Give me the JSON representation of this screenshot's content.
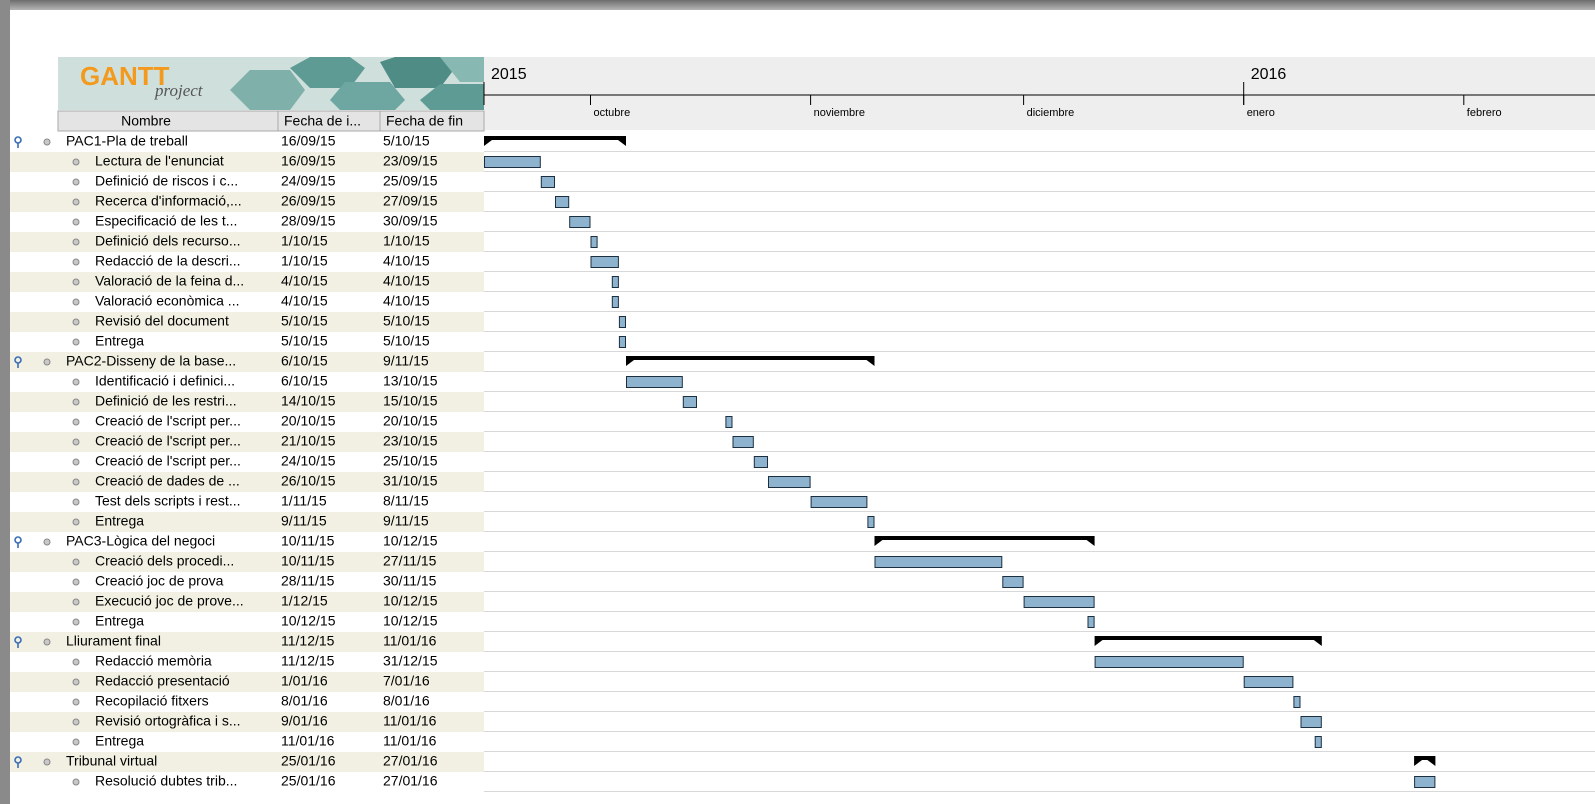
{
  "logo": {
    "brand": "GANTT",
    "sub": "project"
  },
  "columns": [
    "Nombre",
    "Fecha de i...",
    "Fecha de fin"
  ],
  "timeline": {
    "years": [
      "2015",
      "2016"
    ],
    "months": [
      "octubre",
      "noviembre",
      "diciembre",
      "enero",
      "febrero"
    ]
  },
  "rows": [
    {
      "name": "PAC1-Pla de treball",
      "start": "16/09/15",
      "end": "5/10/15",
      "level": 0
    },
    {
      "name": "Lectura de l'enunciat",
      "start": "16/09/15",
      "end": "23/09/15",
      "level": 1
    },
    {
      "name": "Definició de riscos i c...",
      "start": "24/09/15",
      "end": "25/09/15",
      "level": 1
    },
    {
      "name": "Recerca d'informació,...",
      "start": "26/09/15",
      "end": "27/09/15",
      "level": 1
    },
    {
      "name": "Especificació de les t...",
      "start": "28/09/15",
      "end": "30/09/15",
      "level": 1
    },
    {
      "name": "Definició dels recurso...",
      "start": "1/10/15",
      "end": "1/10/15",
      "level": 1
    },
    {
      "name": "Redacció de la descri...",
      "start": "1/10/15",
      "end": "4/10/15",
      "level": 1
    },
    {
      "name": "Valoració de la feina d...",
      "start": "4/10/15",
      "end": "4/10/15",
      "level": 1
    },
    {
      "name": "Valoració econòmica ...",
      "start": "4/10/15",
      "end": "4/10/15",
      "level": 1
    },
    {
      "name": "Revisió del document",
      "start": "5/10/15",
      "end": "5/10/15",
      "level": 1
    },
    {
      "name": "Entrega",
      "start": "5/10/15",
      "end": "5/10/15",
      "level": 1
    },
    {
      "name": "PAC2-Disseny de la base...",
      "start": "6/10/15",
      "end": "9/11/15",
      "level": 0
    },
    {
      "name": "Identificació i definici...",
      "start": "6/10/15",
      "end": "13/10/15",
      "level": 1
    },
    {
      "name": "Definició de les restri...",
      "start": "14/10/15",
      "end": "15/10/15",
      "level": 1
    },
    {
      "name": "Creació de l'script per...",
      "start": "20/10/15",
      "end": "20/10/15",
      "level": 1
    },
    {
      "name": "Creació de l'script per...",
      "start": "21/10/15",
      "end": "23/10/15",
      "level": 1
    },
    {
      "name": "Creació de l'script per...",
      "start": "24/10/15",
      "end": "25/10/15",
      "level": 1
    },
    {
      "name": "Creació de dades de ...",
      "start": "26/10/15",
      "end": "31/10/15",
      "level": 1
    },
    {
      "name": "Test dels scripts i rest...",
      "start": "1/11/15",
      "end": "8/11/15",
      "level": 1
    },
    {
      "name": "Entrega",
      "start": "9/11/15",
      "end": "9/11/15",
      "level": 1
    },
    {
      "name": "PAC3-Lògica del negoci",
      "start": "10/11/15",
      "end": "10/12/15",
      "level": 0
    },
    {
      "name": "Creació dels procedi...",
      "start": "10/11/15",
      "end": "27/11/15",
      "level": 1
    },
    {
      "name": "Creació joc de prova",
      "start": "28/11/15",
      "end": "30/11/15",
      "level": 1
    },
    {
      "name": "Execució joc de prove...",
      "start": "1/12/15",
      "end": "10/12/15",
      "level": 1
    },
    {
      "name": "Entrega",
      "start": "10/12/15",
      "end": "10/12/15",
      "level": 1
    },
    {
      "name": "Lliurament final",
      "start": "11/12/15",
      "end": "11/01/16",
      "level": 0
    },
    {
      "name": "Redacció memòria",
      "start": "11/12/15",
      "end": "31/12/15",
      "level": 1
    },
    {
      "name": "Redacció presentació",
      "start": "1/01/16",
      "end": "7/01/16",
      "level": 1
    },
    {
      "name": "Recopilació fitxers",
      "start": "8/01/16",
      "end": "8/01/16",
      "level": 1
    },
    {
      "name": "Revisió ortogràfica i s...",
      "start": "9/01/16",
      "end": "11/01/16",
      "level": 1
    },
    {
      "name": "Entrega",
      "start": "11/01/16",
      "end": "11/01/16",
      "level": 1
    },
    {
      "name": "Tribunal virtual",
      "start": "25/01/16",
      "end": "27/01/16",
      "level": 0
    },
    {
      "name": "Resolució dubtes trib...",
      "start": "25/01/16",
      "end": "27/01/16",
      "level": 1
    }
  ]
}
